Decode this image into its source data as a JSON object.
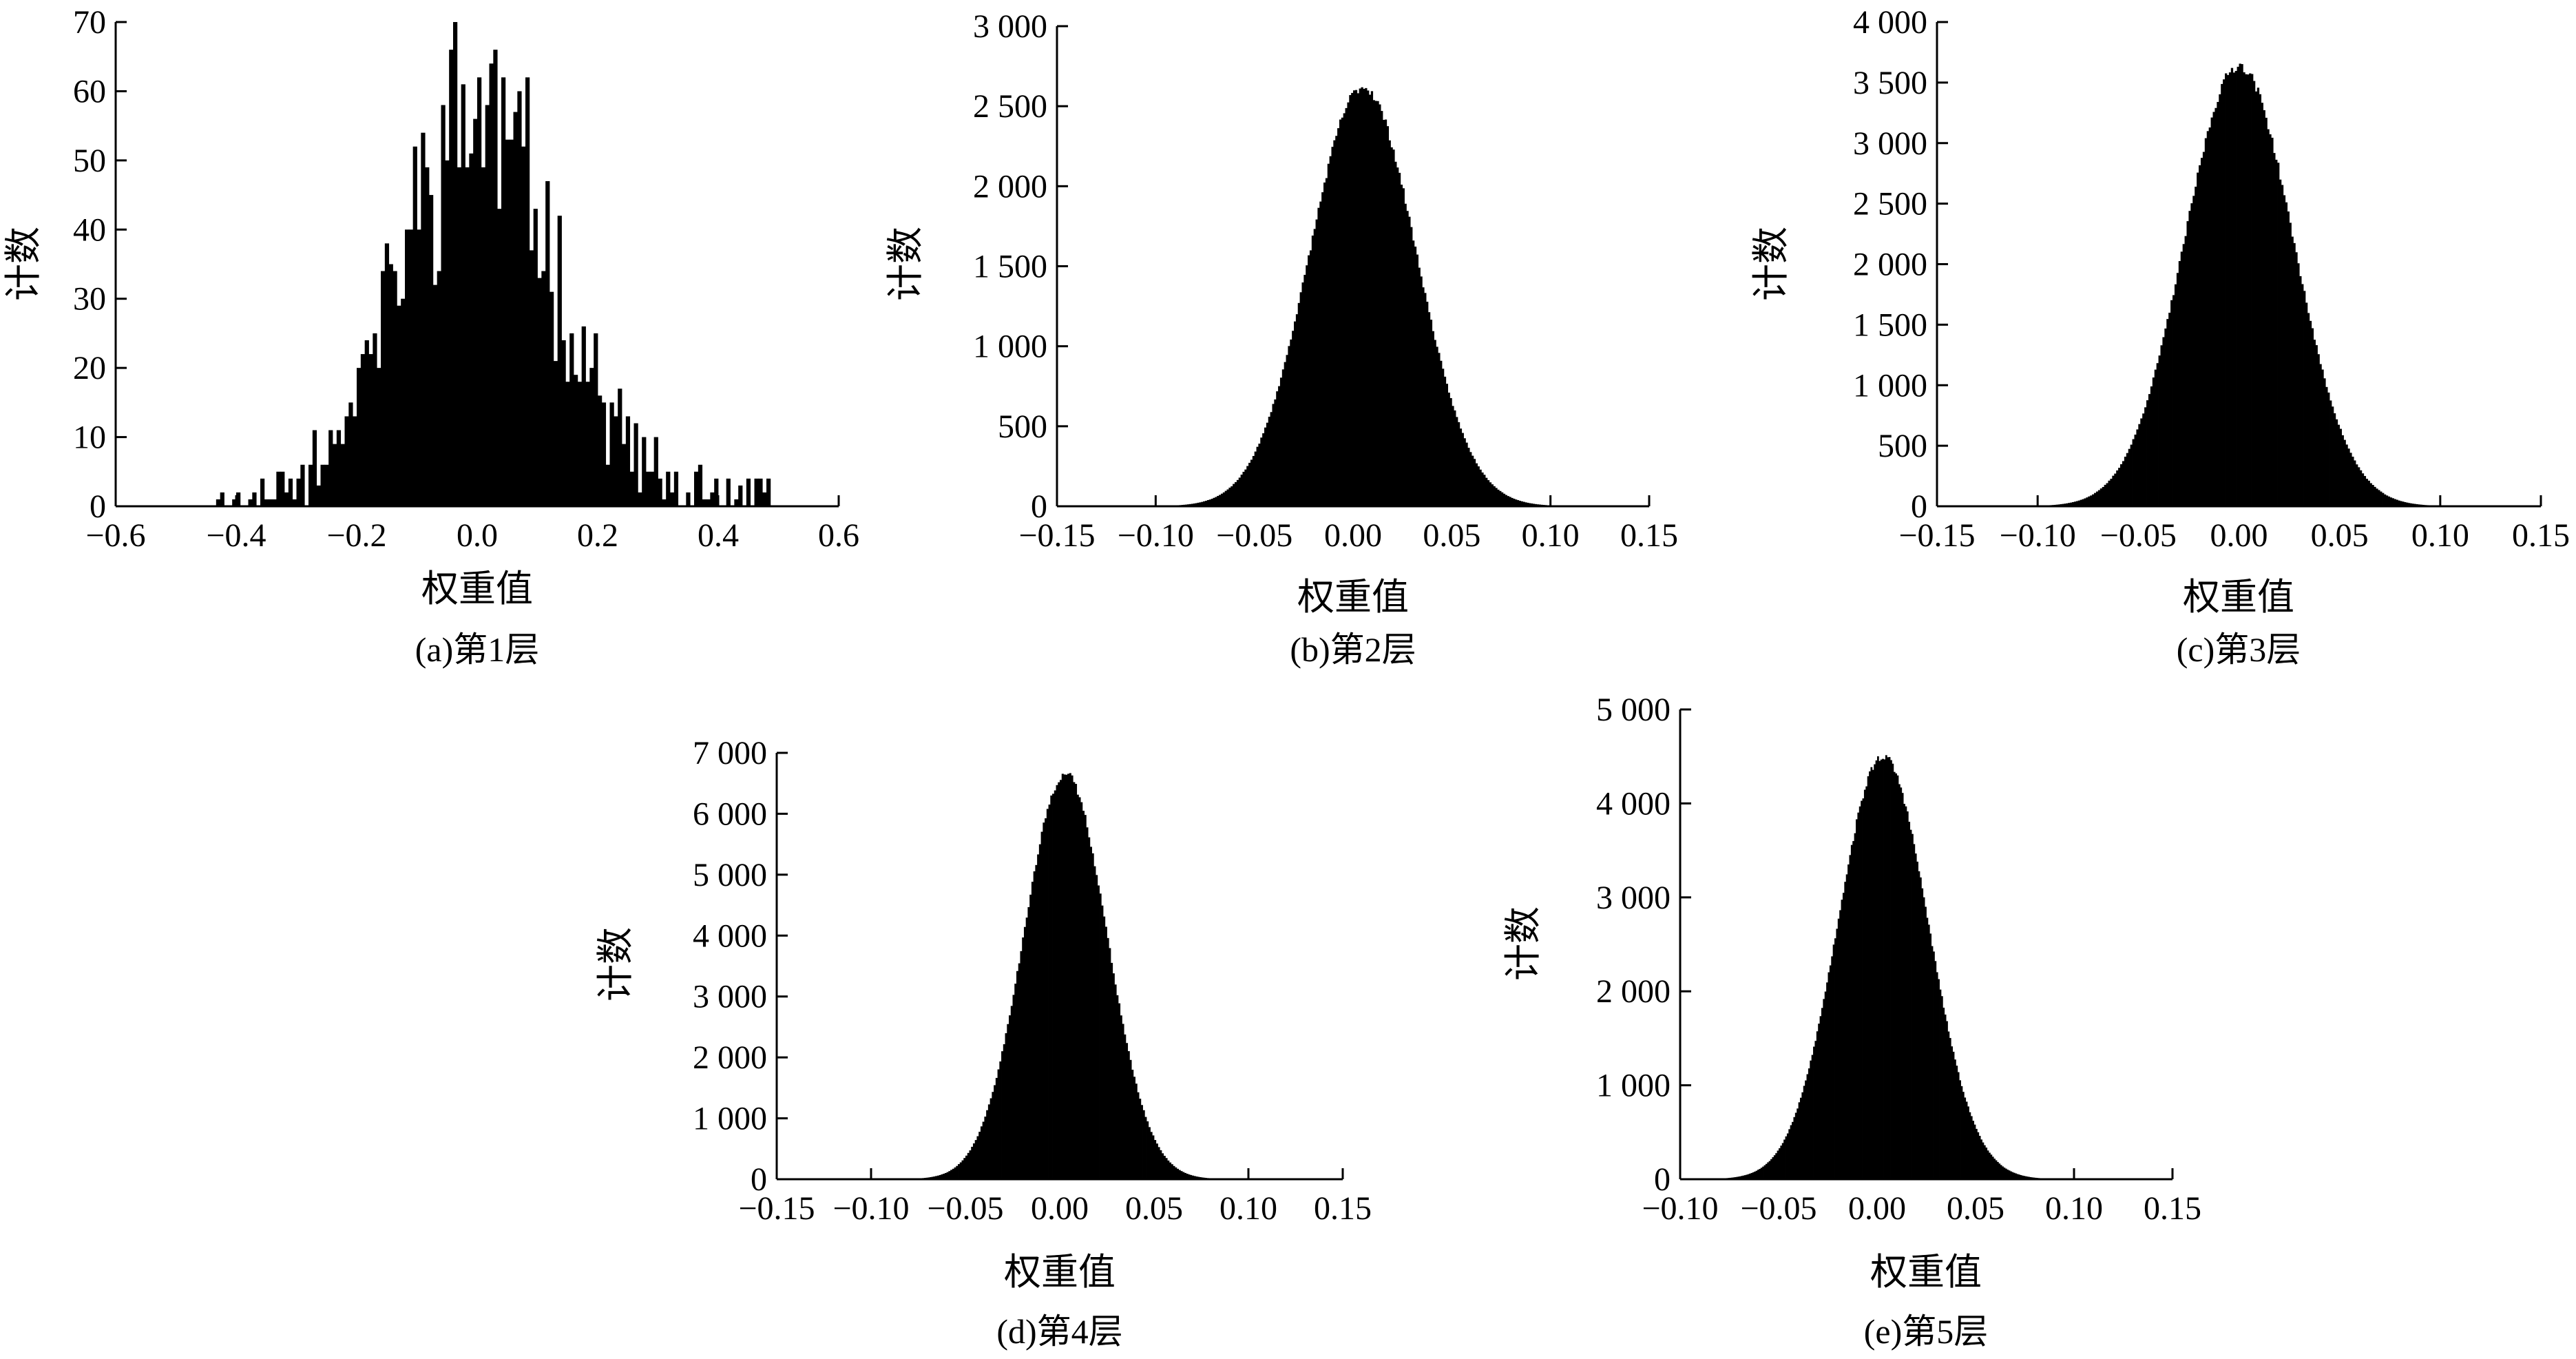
{
  "chart_data": [
    {
      "type": "histogram",
      "caption": "(a)第1层",
      "xlabel": "权重值",
      "ylabel": "计数",
      "xlim": [
        -0.6,
        0.6
      ],
      "ylim": [
        0,
        70
      ],
      "x_ticks": [
        -0.6,
        -0.4,
        -0.2,
        0.0,
        0.2,
        0.4,
        0.6
      ],
      "x_tick_labels": [
        "−0.6",
        "−0.4",
        "−0.2",
        "0.0",
        "0.2",
        "0.4",
        "0.6"
      ],
      "y_ticks": [
        0,
        10,
        20,
        30,
        40,
        50,
        60,
        70
      ],
      "y_tick_labels": [
        "0",
        "10",
        "20",
        "30",
        "40",
        "50",
        "60",
        "70"
      ],
      "distribution": {
        "shape": "gaussian",
        "mean": 0.0,
        "std": 0.13,
        "peak": 57,
        "support": [
          -0.43,
          0.49
        ],
        "noise": 0.14,
        "bins": 180,
        "seed": 11
      },
      "color": "#000000"
    },
    {
      "type": "histogram",
      "caption": "(b)第2层",
      "xlabel": "权重值",
      "ylabel": "计数",
      "xlim": [
        -0.15,
        0.15
      ],
      "ylim": [
        0,
        3000
      ],
      "x_ticks": [
        -0.15,
        -0.1,
        -0.05,
        0.0,
        0.05,
        0.1,
        0.15
      ],
      "x_tick_labels": [
        "−0.15",
        "−0.10",
        "−0.05",
        "0.00",
        "0.05",
        "0.10",
        "0.15"
      ],
      "y_ticks": [
        0,
        500,
        1000,
        1500,
        2000,
        2500,
        3000
      ],
      "y_tick_labels": [
        "0",
        "500",
        "1 000",
        "1 500",
        "2 000",
        "2 500",
        "3 000"
      ],
      "distribution": {
        "shape": "gaussian",
        "mean": 0.005,
        "std": 0.027,
        "peak": 2620,
        "support": [
          -0.14,
          0.14
        ],
        "noise": 0.012,
        "bins": 300,
        "seed": 23
      },
      "color": "#000000"
    },
    {
      "type": "histogram",
      "caption": "(c)第3层",
      "xlabel": "权重值",
      "ylabel": "计数",
      "xlim": [
        -0.15,
        0.15
      ],
      "ylim": [
        0,
        4000
      ],
      "x_ticks": [
        -0.15,
        -0.1,
        -0.05,
        0.0,
        0.05,
        0.1,
        0.15
      ],
      "x_tick_labels": [
        "−0.15",
        "−0.10",
        "−0.05",
        "0.00",
        "0.05",
        "0.10",
        "0.15"
      ],
      "y_ticks": [
        0,
        500,
        1000,
        1500,
        2000,
        2500,
        3000,
        3500,
        4000
      ],
      "y_tick_labels": [
        "0",
        "500",
        "1 000",
        "1 500",
        "2 000",
        "2 500",
        "3 000",
        "3 500",
        "4 000"
      ],
      "distribution": {
        "shape": "gaussian",
        "mean": 0.0,
        "std": 0.027,
        "peak": 3640,
        "support": [
          -0.14,
          0.14
        ],
        "noise": 0.012,
        "bins": 300,
        "seed": 37
      },
      "color": "#000000"
    },
    {
      "type": "histogram",
      "caption": "(d)第4层",
      "xlabel": "权重值",
      "ylabel": "计数",
      "xlim": [
        -0.15,
        0.15
      ],
      "ylim": [
        0,
        7000
      ],
      "x_ticks": [
        -0.15,
        -0.1,
        -0.05,
        0.0,
        0.05,
        0.1,
        0.15
      ],
      "x_tick_labels": [
        "−0.15",
        "−0.10",
        "−0.05",
        "0.00",
        "0.05",
        "0.10",
        "0.15"
      ],
      "y_ticks": [
        0,
        1000,
        2000,
        3000,
        4000,
        5000,
        6000,
        7000
      ],
      "y_tick_labels": [
        "0",
        "1 000",
        "2 000",
        "3 000",
        "4 000",
        "5 000",
        "6 000",
        "7 000"
      ],
      "distribution": {
        "shape": "gaussian",
        "mean": 0.003,
        "std": 0.022,
        "peak": 6650,
        "support": [
          -0.11,
          0.12
        ],
        "noise": 0.01,
        "bins": 300,
        "seed": 41
      },
      "color": "#000000"
    },
    {
      "type": "histogram",
      "caption": "(e)第5层",
      "xlabel": "权重值",
      "ylabel": "计数",
      "xlim": [
        -0.1,
        0.15
      ],
      "ylim": [
        0,
        5000
      ],
      "x_ticks": [
        -0.1,
        -0.05,
        0.0,
        0.05,
        0.1,
        0.15
      ],
      "x_tick_labels": [
        "−0.10",
        "−0.05",
        "0.00",
        "0.05",
        "0.10",
        "0.15"
      ],
      "y_ticks": [
        0,
        1000,
        2000,
        3000,
        4000,
        5000
      ],
      "y_tick_labels": [
        "0",
        "1 000",
        "2 000",
        "3 000",
        "4 000",
        "5 000"
      ],
      "distribution": {
        "shape": "gaussian",
        "mean": 0.003,
        "std": 0.023,
        "peak": 4500,
        "support": [
          -0.1,
          0.12
        ],
        "noise": 0.01,
        "bins": 300,
        "seed": 53
      },
      "color": "#000000"
    }
  ]
}
